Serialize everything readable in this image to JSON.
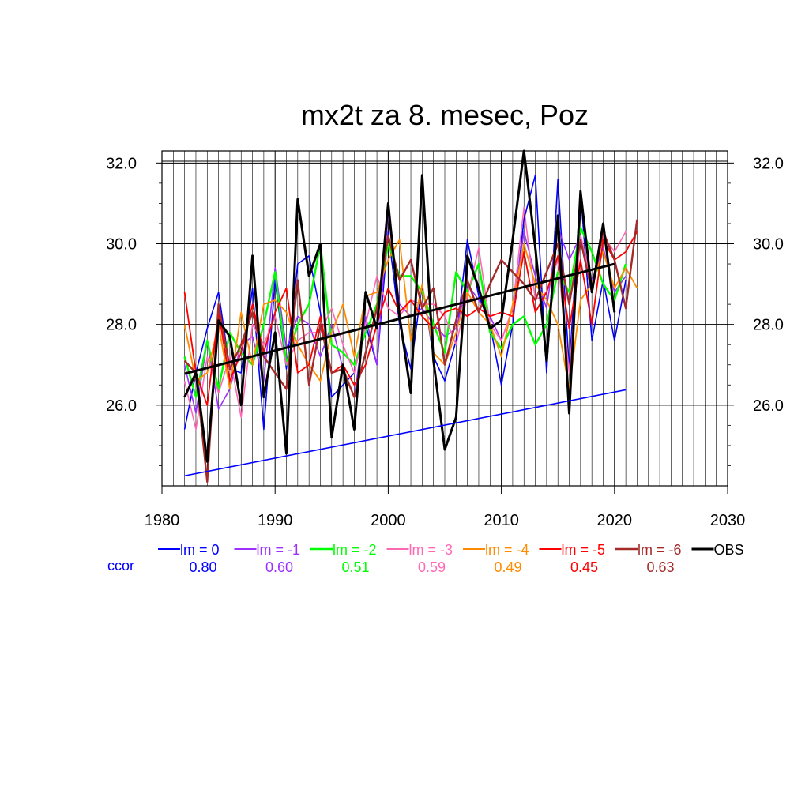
{
  "chart_data": {
    "type": "line",
    "title": "mx2t za 8. mesec, Poz",
    "xlim": [
      1980,
      2030
    ],
    "ylim": [
      24.0,
      32.3
    ],
    "x_ticks": [
      1980,
      1990,
      2000,
      2010,
      2020,
      2030
    ],
    "x_tick_labels": [
      "1980",
      "1990",
      "2000",
      "2010",
      "2020",
      "2030"
    ],
    "y_ticks": [
      26.0,
      28.0,
      30.0,
      32.0
    ],
    "y_tick_labels": [
      "26.0",
      "28.0",
      "30.0",
      "32.0"
    ],
    "grid": true,
    "legend_position": "bottom",
    "ccor_label": "ccor",
    "ccor_color": "#0000ff",
    "series": [
      {
        "name": "lm = 0",
        "color": "#0000ff",
        "width": 1.6,
        "ccor": "0.80",
        "x": [
          1982,
          1983,
          1984,
          1985,
          1986,
          1987,
          1988,
          1989,
          1990,
          1991,
          1992,
          1993,
          1994,
          1995,
          1996,
          1997,
          1998,
          1999,
          2000,
          2001,
          2002,
          2003,
          2004,
          2005,
          2006,
          2007,
          2008,
          2009,
          2010,
          2011,
          2012,
          2013,
          2014,
          2015,
          2016,
          2017,
          2018,
          2019,
          2020,
          2021
        ],
        "y": [
          25.4,
          26.8,
          27.9,
          28.8,
          26.9,
          26.8,
          28.9,
          25.4,
          29.1,
          26.9,
          29.5,
          29.7,
          28.3,
          26.2,
          26.5,
          26.8,
          28.0,
          27.0,
          30.3,
          28.0,
          26.9,
          29.0,
          27.2,
          26.6,
          27.6,
          30.1,
          28.7,
          28.0,
          26.5,
          28.0,
          30.6,
          31.7,
          26.8,
          31.6,
          26.9,
          31.3,
          27.6,
          29.1,
          27.6,
          29.1
        ]
      },
      {
        "name": "lm = -1",
        "color": "#9b30ff",
        "width": 1.6,
        "ccor": "0.60",
        "x": [
          1982,
          1983,
          1984,
          1985,
          1986,
          1987,
          1988,
          1989,
          1990,
          1991,
          1992,
          1993,
          1994,
          1995,
          1996,
          1997,
          1998,
          1999,
          2000,
          2001,
          2002,
          2003,
          2004,
          2005,
          2006,
          2007,
          2008,
          2009,
          2010,
          2011,
          2012,
          2013,
          2014,
          2015,
          2016,
          2017,
          2018,
          2019,
          2020,
          2021
        ],
        "y": [
          27.0,
          25.8,
          27.6,
          25.9,
          26.4,
          27.5,
          27.7,
          26.6,
          29.4,
          27.4,
          28.2,
          28.0,
          27.2,
          28.0,
          26.9,
          26.2,
          28.2,
          27.0,
          30.8,
          28.5,
          28.2,
          28.4,
          28.0,
          27.7,
          27.9,
          29.0,
          28.6,
          28.2,
          27.6,
          28.4,
          30.3,
          29.2,
          28.4,
          30.4,
          29.6,
          30.2,
          29.1,
          29.9,
          28.8,
          29.2
        ]
      },
      {
        "name": "lm = -2",
        "color": "#00ff00",
        "width": 2.4,
        "ccor": "0.51",
        "x": [
          1982,
          1983,
          1984,
          1985,
          1986,
          1987,
          1988,
          1989,
          1990,
          1991,
          1992,
          1993,
          1994,
          1995,
          1996,
          1997,
          1998,
          1999,
          2000,
          2001,
          2002,
          2003,
          2004,
          2005,
          2006,
          2007,
          2008,
          2009,
          2010,
          2011,
          2012,
          2013,
          2014,
          2015,
          2016,
          2017,
          2018,
          2019,
          2020,
          2021
        ],
        "y": [
          27.2,
          26.2,
          27.6,
          26.4,
          27.8,
          27.3,
          27.0,
          28.0,
          29.3,
          27.0,
          28.0,
          28.5,
          30.0,
          27.5,
          27.3,
          27.0,
          27.8,
          28.5,
          30.0,
          29.2,
          29.2,
          28.8,
          28.0,
          27.3,
          29.3,
          28.8,
          29.5,
          27.8,
          27.4,
          28.0,
          28.2,
          27.5,
          28.0,
          29.3,
          28.8,
          30.4,
          29.8,
          29.0,
          28.6,
          29.5
        ]
      },
      {
        "name": "lm = -3",
        "color": "#ff69b4",
        "width": 1.6,
        "ccor": "0.59",
        "x": [
          1982,
          1983,
          1984,
          1985,
          1986,
          1987,
          1988,
          1989,
          1990,
          1991,
          1992,
          1993,
          1994,
          1995,
          1996,
          1997,
          1998,
          1999,
          2000,
          2001,
          2002,
          2003,
          2004,
          2005,
          2006,
          2007,
          2008,
          2009,
          2010,
          2011,
          2012,
          2013,
          2014,
          2015,
          2016,
          2017,
          2018,
          2019,
          2020,
          2021
        ],
        "y": [
          26.6,
          25.4,
          27.2,
          26.3,
          27.2,
          25.7,
          28.0,
          27.5,
          28.2,
          27.0,
          27.6,
          27.8,
          27.8,
          28.4,
          27.5,
          26.8,
          28.0,
          29.2,
          28.4,
          28.2,
          28.6,
          28.5,
          28.5,
          28.2,
          27.5,
          28.7,
          29.9,
          28.0,
          27.6,
          28.4,
          30.9,
          28.6,
          28.8,
          29.6,
          26.8,
          30.2,
          29.0,
          30.2,
          29.8,
          30.3
        ]
      },
      {
        "name": "lm = -4",
        "color": "#ff8c00",
        "width": 1.8,
        "ccor": "0.49",
        "x": [
          1982,
          1983,
          1984,
          1985,
          1986,
          1987,
          1988,
          1989,
          1990,
          1991,
          1992,
          1993,
          1994,
          1995,
          1996,
          1997,
          1998,
          1999,
          2000,
          2001,
          2002,
          2003,
          2004,
          2005,
          2006,
          2007,
          2008,
          2009,
          2010,
          2011,
          2012,
          2013,
          2014,
          2015,
          2016,
          2017,
          2018,
          2019,
          2020,
          2021,
          2022
        ],
        "y": [
          28.0,
          26.6,
          26.8,
          28.0,
          26.4,
          28.3,
          27.0,
          28.5,
          28.6,
          28.3,
          27.5,
          27.0,
          26.6,
          27.8,
          28.5,
          27.2,
          28.7,
          28.8,
          29.6,
          30.1,
          27.6,
          29.0,
          27.3,
          27.0,
          27.8,
          28.8,
          28.3,
          28.0,
          27.2,
          28.5,
          30.0,
          29.0,
          28.6,
          28.0,
          26.4,
          28.6,
          29.0,
          29.8,
          28.9,
          29.4,
          28.9
        ]
      },
      {
        "name": "lm = -5",
        "color": "#ff0000",
        "width": 1.8,
        "ccor": "0.45",
        "x": [
          1982,
          1983,
          1984,
          1985,
          1986,
          1987,
          1988,
          1989,
          1990,
          1991,
          1992,
          1993,
          1994,
          1995,
          1996,
          1997,
          1998,
          1999,
          2000,
          2001,
          2002,
          2003,
          2004,
          2005,
          2006,
          2007,
          2008,
          2009,
          2010,
          2011,
          2012,
          2013,
          2014,
          2015,
          2016,
          2017,
          2018,
          2019,
          2020,
          2021,
          2022
        ],
        "y": [
          28.8,
          26.8,
          26.0,
          28.3,
          26.6,
          27.3,
          28.5,
          27.3,
          28.3,
          28.9,
          26.8,
          27.0,
          28.2,
          26.8,
          27.0,
          26.5,
          27.0,
          28.0,
          28.9,
          28.3,
          28.6,
          28.2,
          27.9,
          28.3,
          28.4,
          28.2,
          28.4,
          28.2,
          28.3,
          28.2,
          29.8,
          28.3,
          28.8,
          29.7,
          27.9,
          29.6,
          28.0,
          30.1,
          29.6,
          29.8,
          30.3
        ]
      },
      {
        "name": "lm = -6",
        "color": "#a52a2a",
        "width": 2.4,
        "ccor": "0.63",
        "x": [
          1982,
          1983,
          1984,
          1985,
          1986,
          1987,
          1988,
          1989,
          1990,
          1991,
          1992,
          1993,
          1994,
          1995,
          1996,
          1997,
          1998,
          1999,
          2000,
          2001,
          2002,
          2003,
          2004,
          2005,
          2006,
          2007,
          2008,
          2009,
          2010,
          2011,
          2012,
          2013,
          2014,
          2015,
          2016,
          2017,
          2018,
          2019,
          2020,
          2021,
          2022
        ],
        "y": [
          27.1,
          26.8,
          24.1,
          28.5,
          26.9,
          27.5,
          28.3,
          27.2,
          26.8,
          26.4,
          29.1,
          26.5,
          28.0,
          26.8,
          26.9,
          26.2,
          27.3,
          28.4,
          30.2,
          29.1,
          29.6,
          28.4,
          28.9,
          27.0,
          28.1,
          29.1,
          28.3,
          29.0,
          29.6,
          29.3,
          29.0,
          28.6,
          29.3,
          30.0,
          28.5,
          30.1,
          28.8,
          30.3,
          29.6,
          28.4,
          30.6
        ]
      },
      {
        "name": "OBS",
        "color": "#000000",
        "width": 3.0,
        "ccor": "",
        "x": [
          1982,
          1983,
          1984,
          1985,
          1986,
          1987,
          1988,
          1989,
          1990,
          1991,
          1992,
          1993,
          1994,
          1995,
          1996,
          1997,
          1998,
          1999,
          2000,
          2001,
          2002,
          2003,
          2004,
          2005,
          2006,
          2007,
          2008,
          2009,
          2010,
          2011,
          2012,
          2013,
          2014,
          2015,
          2016,
          2017,
          2018,
          2019,
          2020
        ],
        "y": [
          26.2,
          26.8,
          24.6,
          28.1,
          27.7,
          26.0,
          29.7,
          26.2,
          27.8,
          24.8,
          31.1,
          29.2,
          30.0,
          25.2,
          27.0,
          25.4,
          28.8,
          27.9,
          31.0,
          28.2,
          26.3,
          31.7,
          27.1,
          24.9,
          25.7,
          29.7,
          28.9,
          27.9,
          28.1,
          30.1,
          32.3,
          29.9,
          27.1,
          30.7,
          25.8,
          31.3,
          28.8,
          30.5,
          28.3
        ]
      }
    ],
    "trend_lines": [
      {
        "name": "OBS trend",
        "color": "#000000",
        "width": 3.0,
        "x": [
          1982,
          2020
        ],
        "y": [
          26.78,
          29.5
        ]
      },
      {
        "name": "lm = 0 trend",
        "color": "#0000ff",
        "width": 1.6,
        "x": [
          1982,
          2021
        ],
        "y": [
          24.25,
          26.38
        ]
      }
    ]
  }
}
